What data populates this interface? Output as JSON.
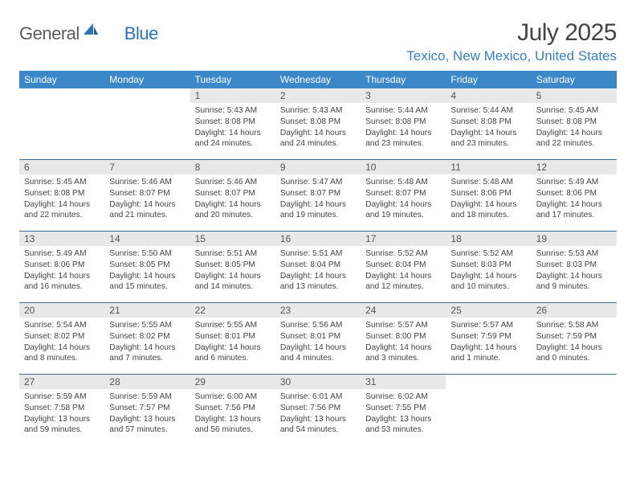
{
  "colors": {
    "header_blue": "#3b87c8",
    "accent_blue": "#3b7fbf",
    "row_divider": "#3b6a99",
    "daynum_bg": "#e8e8e8",
    "text_gray": "#444444",
    "logo_gray": "#5a5a5a",
    "logo_blue": "#2a72b5"
  },
  "logo": {
    "text1": "General",
    "text2": "Blue"
  },
  "title": "July 2025",
  "location": "Texico, New Mexico, United States",
  "weekdays": [
    "Sunday",
    "Monday",
    "Tuesday",
    "Wednesday",
    "Thursday",
    "Friday",
    "Saturday"
  ],
  "weeks": [
    [
      {
        "n": "",
        "sr": "",
        "ss": "",
        "dl": ""
      },
      {
        "n": "",
        "sr": "",
        "ss": "",
        "dl": ""
      },
      {
        "n": "1",
        "sr": "Sunrise: 5:43 AM",
        "ss": "Sunset: 8:08 PM",
        "dl": "Daylight: 14 hours and 24 minutes."
      },
      {
        "n": "2",
        "sr": "Sunrise: 5:43 AM",
        "ss": "Sunset: 8:08 PM",
        "dl": "Daylight: 14 hours and 24 minutes."
      },
      {
        "n": "3",
        "sr": "Sunrise: 5:44 AM",
        "ss": "Sunset: 8:08 PM",
        "dl": "Daylight: 14 hours and 23 minutes."
      },
      {
        "n": "4",
        "sr": "Sunrise: 5:44 AM",
        "ss": "Sunset: 8:08 PM",
        "dl": "Daylight: 14 hours and 23 minutes."
      },
      {
        "n": "5",
        "sr": "Sunrise: 5:45 AM",
        "ss": "Sunset: 8:08 PM",
        "dl": "Daylight: 14 hours and 22 minutes."
      }
    ],
    [
      {
        "n": "6",
        "sr": "Sunrise: 5:45 AM",
        "ss": "Sunset: 8:08 PM",
        "dl": "Daylight: 14 hours and 22 minutes."
      },
      {
        "n": "7",
        "sr": "Sunrise: 5:46 AM",
        "ss": "Sunset: 8:07 PM",
        "dl": "Daylight: 14 hours and 21 minutes."
      },
      {
        "n": "8",
        "sr": "Sunrise: 5:46 AM",
        "ss": "Sunset: 8:07 PM",
        "dl": "Daylight: 14 hours and 20 minutes."
      },
      {
        "n": "9",
        "sr": "Sunrise: 5:47 AM",
        "ss": "Sunset: 8:07 PM",
        "dl": "Daylight: 14 hours and 19 minutes."
      },
      {
        "n": "10",
        "sr": "Sunrise: 5:48 AM",
        "ss": "Sunset: 8:07 PM",
        "dl": "Daylight: 14 hours and 19 minutes."
      },
      {
        "n": "11",
        "sr": "Sunrise: 5:48 AM",
        "ss": "Sunset: 8:06 PM",
        "dl": "Daylight: 14 hours and 18 minutes."
      },
      {
        "n": "12",
        "sr": "Sunrise: 5:49 AM",
        "ss": "Sunset: 8:06 PM",
        "dl": "Daylight: 14 hours and 17 minutes."
      }
    ],
    [
      {
        "n": "13",
        "sr": "Sunrise: 5:49 AM",
        "ss": "Sunset: 8:06 PM",
        "dl": "Daylight: 14 hours and 16 minutes."
      },
      {
        "n": "14",
        "sr": "Sunrise: 5:50 AM",
        "ss": "Sunset: 8:05 PM",
        "dl": "Daylight: 14 hours and 15 minutes."
      },
      {
        "n": "15",
        "sr": "Sunrise: 5:51 AM",
        "ss": "Sunset: 8:05 PM",
        "dl": "Daylight: 14 hours and 14 minutes."
      },
      {
        "n": "16",
        "sr": "Sunrise: 5:51 AM",
        "ss": "Sunset: 8:04 PM",
        "dl": "Daylight: 14 hours and 13 minutes."
      },
      {
        "n": "17",
        "sr": "Sunrise: 5:52 AM",
        "ss": "Sunset: 8:04 PM",
        "dl": "Daylight: 14 hours and 12 minutes."
      },
      {
        "n": "18",
        "sr": "Sunrise: 5:52 AM",
        "ss": "Sunset: 8:03 PM",
        "dl": "Daylight: 14 hours and 10 minutes."
      },
      {
        "n": "19",
        "sr": "Sunrise: 5:53 AM",
        "ss": "Sunset: 8:03 PM",
        "dl": "Daylight: 14 hours and 9 minutes."
      }
    ],
    [
      {
        "n": "20",
        "sr": "Sunrise: 5:54 AM",
        "ss": "Sunset: 8:02 PM",
        "dl": "Daylight: 14 hours and 8 minutes."
      },
      {
        "n": "21",
        "sr": "Sunrise: 5:55 AM",
        "ss": "Sunset: 8:02 PM",
        "dl": "Daylight: 14 hours and 7 minutes."
      },
      {
        "n": "22",
        "sr": "Sunrise: 5:55 AM",
        "ss": "Sunset: 8:01 PM",
        "dl": "Daylight: 14 hours and 6 minutes."
      },
      {
        "n": "23",
        "sr": "Sunrise: 5:56 AM",
        "ss": "Sunset: 8:01 PM",
        "dl": "Daylight: 14 hours and 4 minutes."
      },
      {
        "n": "24",
        "sr": "Sunrise: 5:57 AM",
        "ss": "Sunset: 8:00 PM",
        "dl": "Daylight: 14 hours and 3 minutes."
      },
      {
        "n": "25",
        "sr": "Sunrise: 5:57 AM",
        "ss": "Sunset: 7:59 PM",
        "dl": "Daylight: 14 hours and 1 minute."
      },
      {
        "n": "26",
        "sr": "Sunrise: 5:58 AM",
        "ss": "Sunset: 7:59 PM",
        "dl": "Daylight: 14 hours and 0 minutes."
      }
    ],
    [
      {
        "n": "27",
        "sr": "Sunrise: 5:59 AM",
        "ss": "Sunset: 7:58 PM",
        "dl": "Daylight: 13 hours and 59 minutes."
      },
      {
        "n": "28",
        "sr": "Sunrise: 5:59 AM",
        "ss": "Sunset: 7:57 PM",
        "dl": "Daylight: 13 hours and 57 minutes."
      },
      {
        "n": "29",
        "sr": "Sunrise: 6:00 AM",
        "ss": "Sunset: 7:56 PM",
        "dl": "Daylight: 13 hours and 56 minutes."
      },
      {
        "n": "30",
        "sr": "Sunrise: 6:01 AM",
        "ss": "Sunset: 7:56 PM",
        "dl": "Daylight: 13 hours and 54 minutes."
      },
      {
        "n": "31",
        "sr": "Sunrise: 6:02 AM",
        "ss": "Sunset: 7:55 PM",
        "dl": "Daylight: 13 hours and 53 minutes."
      },
      {
        "n": "",
        "sr": "",
        "ss": "",
        "dl": ""
      },
      {
        "n": "",
        "sr": "",
        "ss": "",
        "dl": ""
      }
    ]
  ]
}
